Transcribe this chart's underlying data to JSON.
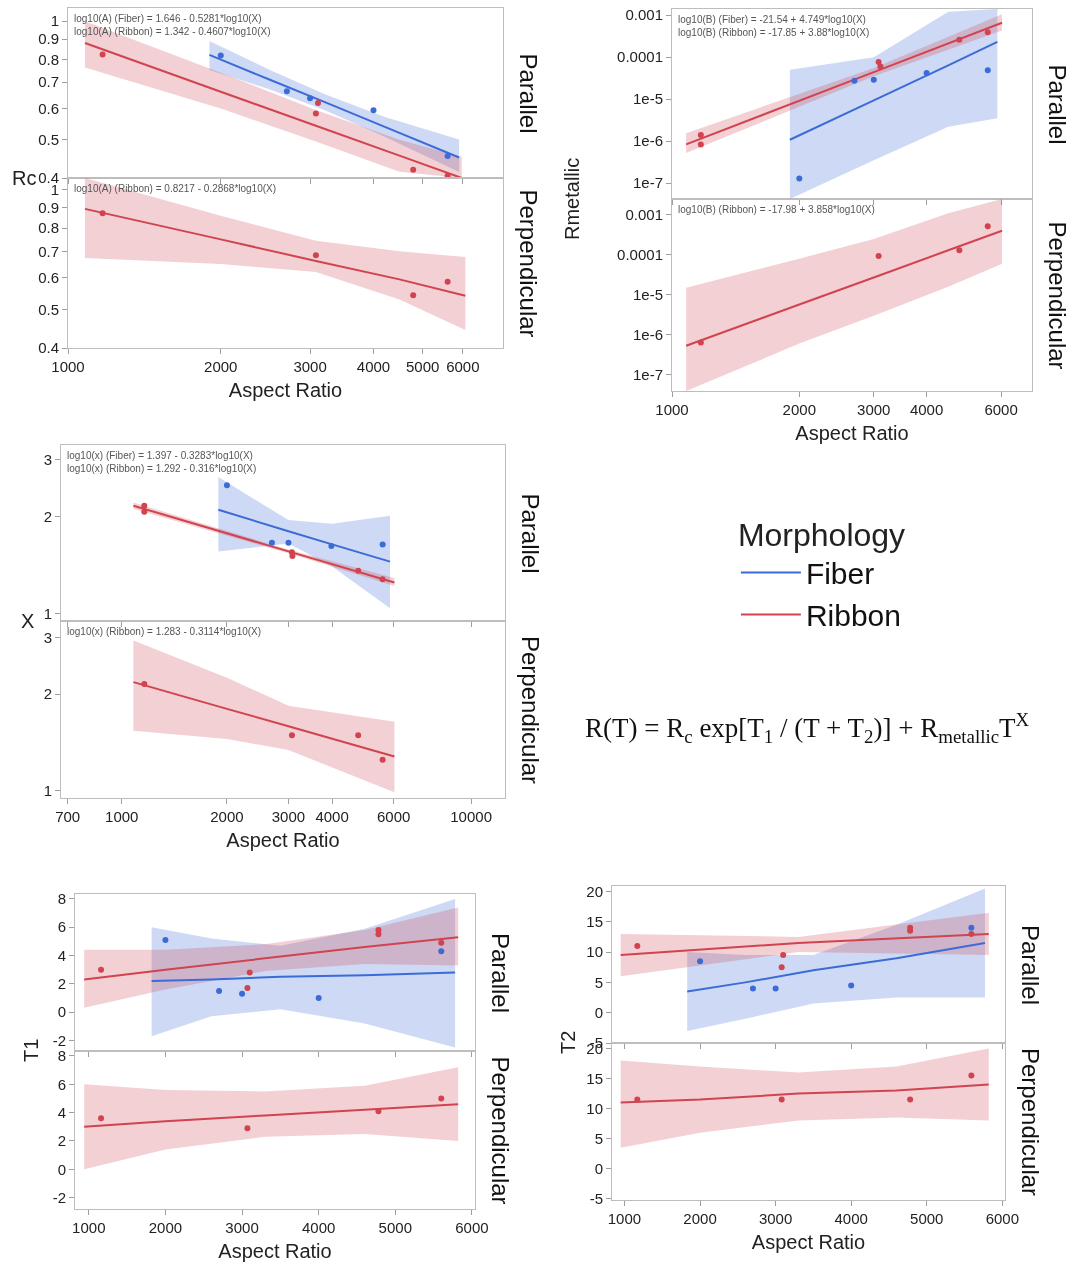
{
  "chart_data": [
    {
      "type": "scatter",
      "ylabel": "Rc",
      "y2label": "Parallel",
      "annotations": [
        "log10(A) (Fiber) = 1.646 - 0.5281*log10(X)",
        "log10(A) (Ribbon) = 1.342 - 0.4607*log10(X)"
      ],
      "log": "xy",
      "tick_labels": "y",
      "xlim": [
        1000,
        7200
      ],
      "xticks": [
        1000,
        2000,
        3000,
        4000,
        5000,
        6000
      ],
      "ylim": [
        0.4,
        1.08
      ],
      "yticks": [
        0.4,
        0.5,
        0.6,
        0.7,
        0.8,
        0.9,
        1
      ],
      "series": [
        {
          "type": "scatter",
          "marker": "circle",
          "color": "#3b6bd6",
          "x": [
            2000,
            2700,
            3000,
            4000,
            5600
          ],
          "values": [
            0.818,
            0.664,
            0.637,
            0.594,
            0.455
          ]
        },
        {
          "type": "line",
          "color": "#3b6bd6",
          "x": [
            1900,
            2500,
            3200,
            4200,
            5900
          ],
          "values": [
            0.821,
            0.71,
            0.624,
            0.54,
            0.451
          ],
          "upper": [
            0.89,
            0.752,
            0.653,
            0.572,
            0.501
          ],
          "lower": [
            0.752,
            0.671,
            0.595,
            0.51,
            0.414
          ]
        },
        {
          "type": "scatter",
          "marker": "circle",
          "color": "#d0434f",
          "x": [
            1170,
            3080,
            3110,
            4790,
            5600
          ],
          "values": [
            0.823,
            0.583,
            0.62,
            0.42,
            0.405
          ]
        },
        {
          "type": "line",
          "color": "#d0434f",
          "x": [
            1080,
            2000,
            3080,
            4500,
            5970
          ],
          "values": [
            0.88,
            0.662,
            0.543,
            0.456,
            0.4
          ],
          "upper": [
            1.0,
            0.74,
            0.595,
            0.5,
            0.453
          ],
          "lower": [
            0.763,
            0.6,
            0.495,
            0.415,
            0.4
          ]
        }
      ]
    },
    {
      "type": "scatter",
      "xlabel": "Aspect Ratio",
      "y2label": "Perpendicular",
      "annotations": [
        "log10(A) (Ribbon) = 0.8217 - 0.2868*log10(X)"
      ],
      "log": "xy",
      "xlim": [
        1000,
        7200
      ],
      "xticks": [
        1000,
        2000,
        3000,
        4000,
        5000,
        6000
      ],
      "ylim": [
        0.4,
        1.07
      ],
      "yticks": [
        0.4,
        0.5,
        0.6,
        0.7,
        0.8,
        0.9,
        1
      ],
      "series": [
        {
          "type": "scatter",
          "marker": "circle",
          "color": "#d0434f",
          "x": [
            1170,
            3080,
            4790,
            5600
          ],
          "values": [
            0.873,
            0.684,
            0.543,
            0.587
          ]
        },
        {
          "type": "line",
          "color": "#d0434f",
          "x": [
            1080,
            2000,
            3080,
            4500,
            6070
          ],
          "values": [
            0.895,
            0.75,
            0.662,
            0.595,
            0.541
          ],
          "upper": [
            1.07,
            0.86,
            0.744,
            0.7,
            0.677
          ],
          "lower": [
            0.673,
            0.65,
            0.621,
            0.53,
            0.444
          ]
        }
      ]
    },
    {
      "type": "scatter",
      "ylabel": "Rmetallic",
      "y2label": "Parallel",
      "annotations": [
        "log10(B) (Fiber) = -21.54 + 4.749*log10(X)",
        "log10(B) (Ribbon) = -17.85 + 3.88*log10(X)"
      ],
      "log": "xy",
      "tick_labels": "y",
      "xlim": [
        1000,
        7100
      ],
      "xticks": [
        1000,
        2000,
        3000,
        4000,
        6000
      ],
      "ylim": [
        4.2e-08,
        0.0014
      ],
      "yticks": [
        {
          "value": 0.001,
          "label": "0.001"
        },
        {
          "value": 0.0001,
          "label": "0.0001"
        },
        {
          "value": 1e-05,
          "label": "1e-5"
        },
        {
          "value": 1e-06,
          "label": "1e-6"
        },
        {
          "value": 1e-07,
          "label": "1e-7"
        }
      ],
      "series": [
        {
          "type": "scatter",
          "marker": "circle",
          "color": "#3b6bd6",
          "x": [
            2000,
            2700,
            3000,
            4000,
            5580
          ],
          "values": [
            1.3e-07,
            2.75e-05,
            2.9e-05,
            4.2e-05,
            4.9e-05
          ]
        },
        {
          "type": "line",
          "color": "#3b6bd6",
          "x": [
            1900,
            3000,
            4500,
            5880
          ],
          "values": [
            1.08e-06,
            9.4e-06,
            6.4e-05,
            0.00023
          ],
          "upper": [
            5e-05,
            0.0001,
            0.0012,
            0.0014
          ],
          "lower": [
            4.2e-08,
            3.5e-07,
            2.2e-06,
            3.5e-06
          ]
        },
        {
          "type": "scatter",
          "marker": "circle",
          "color": "#d0434f",
          "x": [
            1170,
            1170,
            3080,
            3110,
            4780,
            5580
          ],
          "values": [
            1.4e-06,
            8.3e-07,
            7.7e-05,
            6e-05,
            0.00026,
            0.00039
          ]
        },
        {
          "type": "line",
          "color": "#d0434f",
          "x": [
            1080,
            3000,
            6030
          ],
          "values": [
            8.4e-07,
            4.4e-05,
            0.00066
          ],
          "upper": [
            1.55e-06,
            5.5e-05,
            0.00105
          ],
          "lower": [
            5.2e-07,
            3.5e-05,
            0.00043
          ]
        }
      ]
    },
    {
      "type": "scatter",
      "xlabel": "Aspect Ratio",
      "y2label": "Perpendicular",
      "annotations": [
        "log10(B) (Ribbon) = -17.98 + 3.858*log10(X)"
      ],
      "log": "xy",
      "xlim": [
        1000,
        7100
      ],
      "xticks": [
        1000,
        2000,
        3000,
        4000,
        6000
      ],
      "ylim": [
        3.9e-08,
        0.0025
      ],
      "yticks": [
        {
          "value": 0.001,
          "label": "0.001"
        },
        {
          "value": 0.0001,
          "label": "0.0001"
        },
        {
          "value": 1e-05,
          "label": "1e-5"
        },
        {
          "value": 1e-06,
          "label": "1e-6"
        },
        {
          "value": 1e-07,
          "label": "1e-7"
        }
      ],
      "series": [
        {
          "type": "scatter",
          "marker": "circle",
          "color": "#d0434f",
          "x": [
            1170,
            3080,
            4780,
            5580
          ],
          "values": [
            6.4e-07,
            9.4e-05,
            0.00013,
            0.00052
          ]
        },
        {
          "type": "line",
          "color": "#d0434f",
          "x": [
            1080,
            2000,
            3000,
            4500,
            6030
          ],
          "values": [
            5.3e-07,
            5.7e-06,
            2.7e-05,
            0.00013,
            0.0004
          ],
          "upper": [
            1.5e-05,
            8e-05,
            0.00025,
            0.0011,
            0.0025
          ],
          "lower": [
            3.9e-08,
            6e-07,
            3e-06,
            1.6e-05,
            6e-05
          ]
        }
      ]
    },
    {
      "type": "scatter",
      "ylabel": "X",
      "y2label": "Parallel",
      "legend": "right",
      "legend_title": "Morphology",
      "annotations": [
        "log10(x) (Fiber) = 1.397 - 0.3283*log10(X)",
        "log10(x) (Ribbon) = 1.292 - 0.316*log10(X)"
      ],
      "log": "xy",
      "tick_labels": "y",
      "xlim": [
        670,
        12500
      ],
      "xticks": [
        700,
        1000,
        2000,
        3000,
        4000,
        6000,
        10000
      ],
      "ylim": [
        0.95,
        3.33
      ],
      "yticks": [
        1,
        2,
        3
      ],
      "series": [
        {
          "type": "scatter",
          "marker": "circle",
          "color": "#3b6bd6",
          "x": [
            2000,
            2690,
            3000,
            3980,
            5580
          ],
          "values": [
            2.5,
            1.66,
            1.66,
            1.62,
            1.64
          ]
        },
        {
          "type": "line",
          "name": "Fiber",
          "color": "#3b6bd6",
          "x": [
            1890,
            3000,
            4000,
            5860
          ],
          "values": [
            2.1,
            1.8,
            1.64,
            1.45
          ],
          "upper": [
            2.65,
            1.95,
            1.9,
            2.01
          ],
          "lower": [
            1.56,
            1.65,
            1.4,
            1.04
          ]
        },
        {
          "type": "scatter",
          "marker": "circle",
          "color": "#d0434f",
          "x": [
            1160,
            1160,
            3070,
            3080,
            4750,
            5580
          ],
          "values": [
            2.16,
            2.07,
            1.55,
            1.51,
            1.36,
            1.28
          ]
        },
        {
          "type": "line",
          "name": "Ribbon",
          "color": "#d0434f",
          "x": [
            1080,
            3000,
            6030
          ],
          "values": [
            2.16,
            1.56,
            1.25
          ],
          "upper": [
            2.21,
            1.58,
            1.29
          ],
          "lower": [
            2.11,
            1.54,
            1.22
          ]
        }
      ]
    },
    {
      "type": "scatter",
      "xlabel": "Aspect Ratio",
      "y2label": "Perpendicular",
      "annotations": [
        "log10(x) (Ribbon) = 1.283 - 0.3114*log10(X)"
      ],
      "log": "xy",
      "xlim": [
        670,
        12500
      ],
      "xticks": [
        700,
        1000,
        2000,
        3000,
        4000,
        6000,
        10000
      ],
      "ylim": [
        0.95,
        3.38
      ],
      "yticks": [
        1,
        2,
        3
      ],
      "series": [
        {
          "type": "scatter",
          "marker": "circle",
          "color": "#d0434f",
          "x": [
            1160,
            3070,
            4750,
            5580
          ],
          "values": [
            2.15,
            1.49,
            1.49,
            1.25
          ]
        },
        {
          "type": "line",
          "color": "#d0434f",
          "x": [
            1080,
            2000,
            3000,
            6030
          ],
          "values": [
            2.18,
            1.8,
            1.59,
            1.28
          ],
          "upper": [
            2.94,
            2.25,
            1.84,
            1.64
          ],
          "lower": [
            1.54,
            1.45,
            1.34,
            0.99
          ]
        }
      ]
    },
    {
      "type": "scatter",
      "ylabel": "T1",
      "y2label": "Parallel",
      "tick_labels": "y",
      "xlim": [
        820,
        6040
      ],
      "xticks": [
        1000,
        2000,
        3000,
        4000,
        5000,
        6000
      ],
      "ylim": [
        -2.75,
        8.35
      ],
      "yticks": [
        -2,
        0,
        2,
        4,
        6,
        8
      ],
      "series": [
        {
          "type": "scatter",
          "marker": "circle",
          "color": "#3b6bd6",
          "x": [
            2000,
            2700,
            3000,
            4000,
            5600
          ],
          "values": [
            5.1,
            1.5,
            1.3,
            1.0,
            4.3
          ]
        },
        {
          "type": "line",
          "color": "#3b6bd6",
          "x": [
            1820,
            2600,
            3500,
            4600,
            5780
          ],
          "values": [
            2.2,
            2.3,
            2.5,
            2.6,
            2.8
          ],
          "upper": [
            6.0,
            5.2,
            4.7,
            5.9,
            8.0
          ],
          "lower": [
            -1.7,
            -0.3,
            0.2,
            -0.8,
            -2.5
          ]
        },
        {
          "type": "scatter",
          "marker": "circle",
          "color": "#d0434f",
          "x": [
            1160,
            3070,
            3100,
            4780,
            4780,
            5600
          ],
          "values": [
            3.0,
            1.7,
            2.8,
            5.8,
            5.5,
            4.9
          ]
        },
        {
          "type": "line",
          "color": "#d0434f",
          "x": [
            940,
            2000,
            3300,
            4600,
            5820
          ],
          "values": [
            2.3,
            3.0,
            3.8,
            4.6,
            5.3
          ],
          "upper": [
            4.4,
            4.4,
            4.8,
            5.8,
            7.4
          ],
          "lower": [
            0.3,
            1.6,
            2.9,
            3.4,
            3.3
          ]
        }
      ]
    },
    {
      "type": "scatter",
      "xlabel": "Aspect Ratio",
      "y2label": "Perpendicular",
      "xlim": [
        820,
        6040
      ],
      "xticks": [
        1000,
        2000,
        3000,
        4000,
        5000,
        6000
      ],
      "ylim": [
        -2.8,
        8.35
      ],
      "yticks": [
        -2,
        0,
        2,
        4,
        6,
        8
      ],
      "series": [
        {
          "type": "scatter",
          "marker": "circle",
          "color": "#d0434f",
          "x": [
            1160,
            3070,
            4780,
            5600
          ],
          "values": [
            3.6,
            2.9,
            4.1,
            5.0
          ]
        },
        {
          "type": "line",
          "color": "#d0434f",
          "x": [
            940,
            2000,
            3300,
            4600,
            5820
          ],
          "values": [
            3.0,
            3.4,
            3.8,
            4.2,
            4.6
          ],
          "upper": [
            6.0,
            5.6,
            5.5,
            5.9,
            7.2
          ],
          "lower": [
            0.0,
            1.4,
            2.3,
            2.5,
            2.0
          ]
        }
      ]
    },
    {
      "type": "scatter",
      "ylabel": "T2",
      "y2label": "Parallel",
      "tick_labels": "y",
      "xlim": [
        835,
        6035
      ],
      "xticks": [
        1000,
        2000,
        3000,
        4000,
        5000,
        6000
      ],
      "ylim": [
        -5,
        20.9
      ],
      "yticks": [
        -5,
        0,
        5,
        10,
        15,
        20
      ],
      "series": [
        {
          "type": "scatter",
          "marker": "circle",
          "color": "#3b6bd6",
          "x": [
            2000,
            2700,
            3000,
            4000,
            5590
          ],
          "values": [
            8.5,
            4,
            4,
            4.5,
            14
          ]
        },
        {
          "type": "line",
          "color": "#3b6bd6",
          "x": [
            1830,
            2600,
            3500,
            4600,
            5770
          ],
          "values": [
            3.5,
            5,
            7,
            9,
            11.5
          ],
          "upper": [
            10,
            9.5,
            9.5,
            14.5,
            20.5
          ],
          "lower": [
            -3,
            -1,
            1.5,
            2.5,
            2.5
          ]
        },
        {
          "type": "scatter",
          "marker": "circle",
          "color": "#d0434f",
          "x": [
            1170,
            3080,
            3100,
            4780,
            4780,
            5590
          ],
          "values": [
            11,
            7.5,
            9.5,
            14,
            13.5,
            13
          ]
        },
        {
          "type": "line",
          "color": "#d0434f",
          "x": [
            950,
            3300,
            5820
          ],
          "values": [
            9.5,
            11.5,
            13
          ],
          "upper": [
            13,
            12.5,
            16.5
          ],
          "lower": [
            6,
            10,
            9.5
          ]
        }
      ]
    },
    {
      "type": "scatter",
      "xlabel": "Aspect Ratio",
      "y2label": "Perpendicular",
      "xlim": [
        835,
        6035
      ],
      "xticks": [
        1000,
        2000,
        3000,
        4000,
        5000,
        6000
      ],
      "ylim": [
        -5.2,
        20.9
      ],
      "yticks": [
        -5,
        0,
        5,
        10,
        15,
        20
      ],
      "series": [
        {
          "type": "scatter",
          "marker": "circle",
          "color": "#d0434f",
          "x": [
            1170,
            3080,
            4780,
            5590
          ],
          "values": [
            11.5,
            11.5,
            11.5,
            15.5
          ]
        },
        {
          "type": "line",
          "color": "#d0434f",
          "x": [
            950,
            2000,
            3300,
            4600,
            5820
          ],
          "values": [
            11,
            11.5,
            12.5,
            13,
            14
          ],
          "upper": [
            18,
            17,
            16,
            17,
            20
          ],
          "lower": [
            3.5,
            6,
            8,
            8.5,
            8
          ]
        }
      ]
    },
    {
      "type": "other",
      "annotations": [
        "R(T) = R$_{c}$ exp[T$_{1}$ / (T + T$_{2}$)] + R$_{metallic}$T$^{X}$"
      ]
    }
  ]
}
